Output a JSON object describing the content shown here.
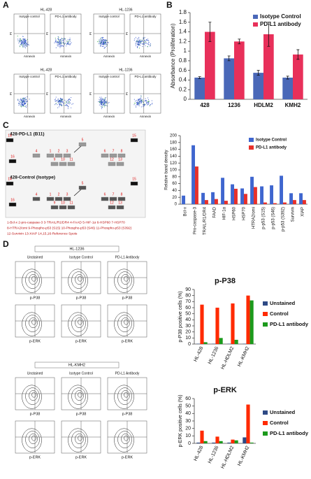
{
  "panel_labels": [
    "A",
    "B",
    "C",
    "D"
  ],
  "panel_a": {
    "groups": [
      {
        "cell_line": "HL-428",
        "conditions": [
          "Isotype control",
          "PD-L1 antibody"
        ]
      },
      {
        "cell_line": "HL-1236",
        "conditions": [
          "Isotype control",
          "PD-L1 antibody"
        ]
      },
      {
        "cell_line": "HL-428",
        "conditions": [
          "Isotype control",
          "PD-L1 antibody"
        ]
      },
      {
        "cell_line": "HL-1236",
        "conditions": [
          "Isotype control",
          "PD-L1 antibody"
        ]
      }
    ],
    "x_label": "Annexin",
    "y_label": "PI"
  },
  "panel_c": {
    "arrays": [
      {
        "title": "428-PD-L1 (B11)",
        "spots": [
          "14",
          "4",
          "1",
          "2",
          "3",
          "5",
          "9",
          "10",
          "11",
          "6",
          "7",
          "8",
          "12",
          "13",
          "15",
          "16"
        ]
      },
      {
        "title": "428-Control (Isotype)",
        "spots": [
          "14",
          "4",
          "1",
          "2",
          "3",
          "5",
          "9",
          "10",
          "11",
          "6",
          "7",
          "8",
          "12",
          "13",
          "15",
          "16"
        ]
      }
    ],
    "key_lines": [
      "1-Bcl-x 2-pro-caspase-3 3-TRAIL/R1/DR4 4-FAAD 5-HIF-1α 6-HSP60 7-HSP70",
      "8-HTRA2/omi 9-Phospho-p53 (S15) 10-Phospho-p53 (S46) 11-Phospho-p53 (S392)",
      "12-Survivin 13-XIAP 14,15,16-Reference Spots"
    ]
  },
  "panel_d": {
    "groups": [
      {
        "cell_line": "HL-1236",
        "conditions": [
          "Unstained",
          "Isotype Control",
          "PD-L1 Antibody"
        ]
      },
      {
        "cell_line": "HL-KMH2",
        "conditions": [
          "Unstained",
          "Isotype Control",
          "PD-L1 Antibody"
        ]
      }
    ],
    "row_labels": [
      "p-P38",
      "p-ERK"
    ]
  },
  "chart_data": [
    {
      "type": "bar",
      "y_label": "Absorbance (Proliferation)",
      "categories": [
        "428",
        "1236",
        "HDLM2",
        "KMH2"
      ],
      "series": [
        {
          "name": "Isotype Control",
          "color": "#4a68b8",
          "values": [
            0.45,
            0.85,
            0.55,
            0.45
          ],
          "errors": [
            0.02,
            0.05,
            0.05,
            0.03
          ]
        },
        {
          "name": "PD-L1 antibody",
          "color": "#e8305a",
          "values": [
            1.4,
            1.2,
            1.35,
            0.93
          ],
          "errors": [
            0.2,
            0.05,
            0.25,
            0.1
          ]
        }
      ],
      "ylim": [
        0,
        1.8
      ],
      "yticks": [
        0,
        0.2,
        0.4,
        0.6,
        0.8,
        1,
        1.2,
        1.4,
        1.6,
        1.8
      ],
      "grid": false,
      "legend": "top-right"
    },
    {
      "type": "bar",
      "y_label": "Relative band density",
      "categories": [
        "Bcl-x",
        "Pro-caspase-3",
        "TRAIL/R1/DR4",
        "FAAD",
        "HIF-1α",
        "HSP60",
        "HSP70",
        "HTRA2/omi",
        "p-p53 (S15)",
        "p-p53 (S46)",
        "p-p53 (S392)",
        "Survivin",
        "XIAP"
      ],
      "series": [
        {
          "name": "Isotype Control",
          "color": "#3f66cf",
          "values": [
            25,
            172,
            33,
            35,
            77,
            58,
            46,
            80,
            52,
            55,
            83,
            32,
            32
          ]
        },
        {
          "name": "PD-L1 antibody",
          "color": "#e8302a",
          "values": [
            0,
            110,
            12,
            15,
            10,
            45,
            30,
            50,
            5,
            3,
            5,
            12,
            12
          ]
        }
      ],
      "ylim": [
        0,
        200
      ],
      "yticks": [
        0,
        20,
        40,
        60,
        80,
        100,
        120,
        140,
        160,
        180,
        200
      ],
      "grid": false,
      "legend": "top-right"
    },
    {
      "type": "bar",
      "title": "p-P38",
      "y_label": "p-P38 positive cells (%)",
      "categories": [
        "HL-428",
        "HL-1236",
        "HL-HDLM2",
        "HL-KMH2"
      ],
      "series": [
        {
          "name": "Unstained",
          "color": "#2e4a85",
          "values": [
            0.5,
            0.5,
            0.5,
            0.5
          ]
        },
        {
          "name": "Control",
          "color": "#ff2a00",
          "values": [
            65,
            60,
            67,
            80
          ]
        },
        {
          "name": "PD-L1 antibody",
          "color": "#1c9a1c",
          "values": [
            3,
            10,
            7,
            72
          ]
        }
      ],
      "ylim": [
        0,
        90
      ],
      "yticks": [
        0,
        10,
        20,
        30,
        40,
        50,
        60,
        70,
        80,
        90
      ],
      "grid": false,
      "legend": "right"
    },
    {
      "type": "bar",
      "title": "p-ERK",
      "y_label": "p-ERK positive cells (%)",
      "categories": [
        "HL-428",
        "HL-1236",
        "HL-HDLM2",
        "HL-KMH2"
      ],
      "series": [
        {
          "name": "Unstained",
          "color": "#2e4a85",
          "values": [
            1,
            1,
            1,
            8
          ]
        },
        {
          "name": "Control",
          "color": "#ff2a00",
          "values": [
            17,
            9,
            5,
            52
          ]
        },
        {
          "name": "PD-L1 antibody",
          "color": "#1c9a1c",
          "values": [
            3,
            3,
            4,
            1
          ]
        }
      ],
      "ylim": [
        0,
        60
      ],
      "yticks": [
        0,
        10,
        20,
        30,
        40,
        50,
        60
      ],
      "grid": false,
      "legend": "right"
    }
  ]
}
